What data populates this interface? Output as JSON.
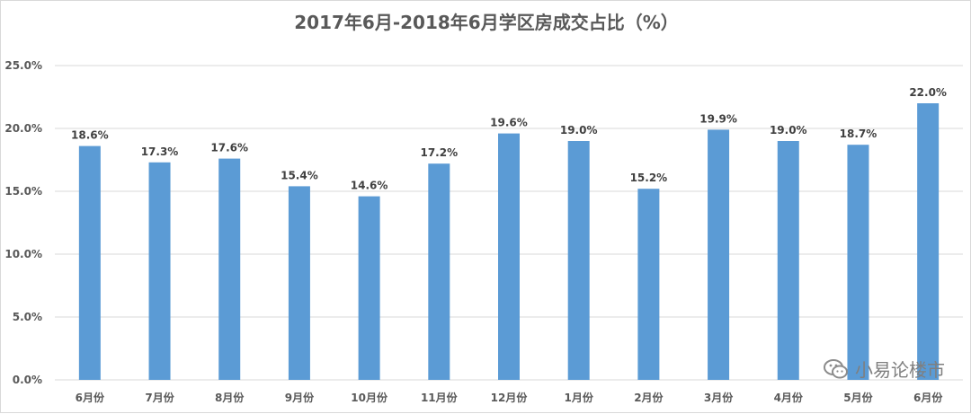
{
  "chart_data": {
    "type": "bar",
    "title": "2017年6月-2018年6月学区房成交占比（%）",
    "xlabel": "",
    "ylabel": "",
    "categories": [
      "6月份",
      "7月份",
      "8月份",
      "9月份",
      "10月份",
      "11月份",
      "12月份",
      "1月份",
      "2月份",
      "3月份",
      "4月份",
      "5月份",
      "6月份"
    ],
    "values": [
      18.6,
      17.3,
      17.6,
      15.4,
      14.6,
      17.2,
      19.6,
      19.0,
      15.2,
      19.9,
      19.0,
      18.7,
      22.0
    ],
    "value_labels": [
      "18.6%",
      "17.3%",
      "17.6%",
      "15.4%",
      "14.6%",
      "17.2%",
      "19.6%",
      "19.0%",
      "15.2%",
      "19.9%",
      "19.0%",
      "18.7%",
      "22.0%"
    ],
    "y_ticks": [
      "0.0%",
      "5.0%",
      "10.0%",
      "15.0%",
      "20.0%",
      "25.0%"
    ],
    "ylim": [
      0,
      25
    ],
    "grid": true,
    "bar_color": "#5b9bd5"
  },
  "watermark": {
    "text": "小易论楼市",
    "icon": "wechat-icon"
  }
}
